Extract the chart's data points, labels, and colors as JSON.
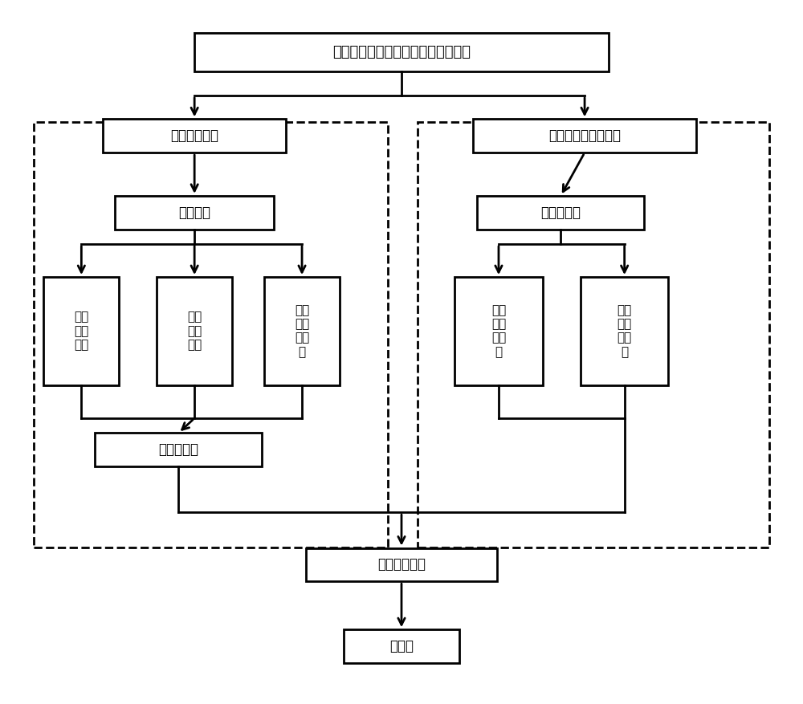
{
  "background_color": "#ffffff",
  "fig_width": 10.0,
  "fig_height": 8.77,
  "title_text": "非饱和土热物性参数测试系统及方法",
  "left_label_text": "土样控制系统",
  "right_label_text": "热物性参数测试系统",
  "sat_sample_text": "饱和土样",
  "right_sample_text": "非饱和土样",
  "box1_text": "压力\n板仪\n单元",
  "box2_text": "压力\n控制\n单元",
  "box3_text": "水质\n量测\n量单\n元",
  "box4_text": "含水\n率测\n试单\n元",
  "box5_text": "热物\n性测\n试单\n元",
  "unsat_text": "非饱和土样",
  "data_collect_text": "数据采集单元",
  "computer_text": "计算机",
  "lw": 2.0,
  "arrow_lw": 2.0
}
